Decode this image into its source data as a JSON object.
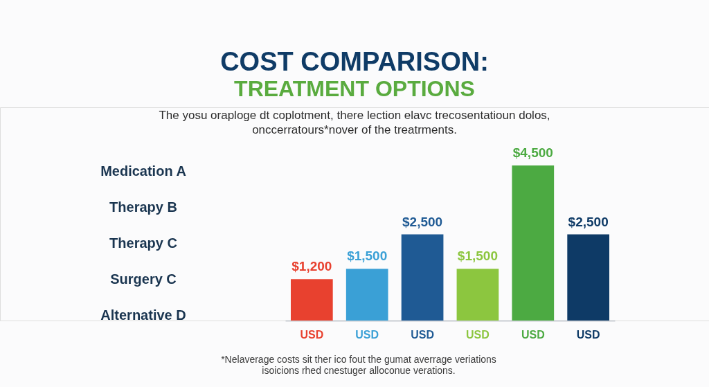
{
  "chart_data": {
    "type": "bar",
    "title": "COST COMPARISON:",
    "subtitle": "TREATMENT OPTIONS",
    "categories": [
      "USD",
      "USD",
      "USD",
      "USD",
      "USD",
      "USD"
    ],
    "values": [
      1200,
      1500,
      2500,
      1500,
      4500,
      2500
    ],
    "colors": [
      "#e8412f",
      "#3aa0d6",
      "#1f5a94",
      "#8cc63f",
      "#4caa42",
      "#0e3a66"
    ],
    "value_labels": [
      "$1,200",
      "$1,500",
      "$2,500",
      "$1,500",
      "$4,500",
      "$2,500"
    ],
    "annotations": [
      "The yosu oraploge dt coplotment, there lection elavc trecosentatioun dolos, onccerratours*nover of the treatrments.",
      "Medication A",
      "Therapy B",
      "Therapy C",
      "Surgery C",
      "Alternative D",
      "*Nelaverage costs sit ther ico fout the gumat averrage veriations isoicions rhed cnestuger alloconue verations."
    ]
  }
}
